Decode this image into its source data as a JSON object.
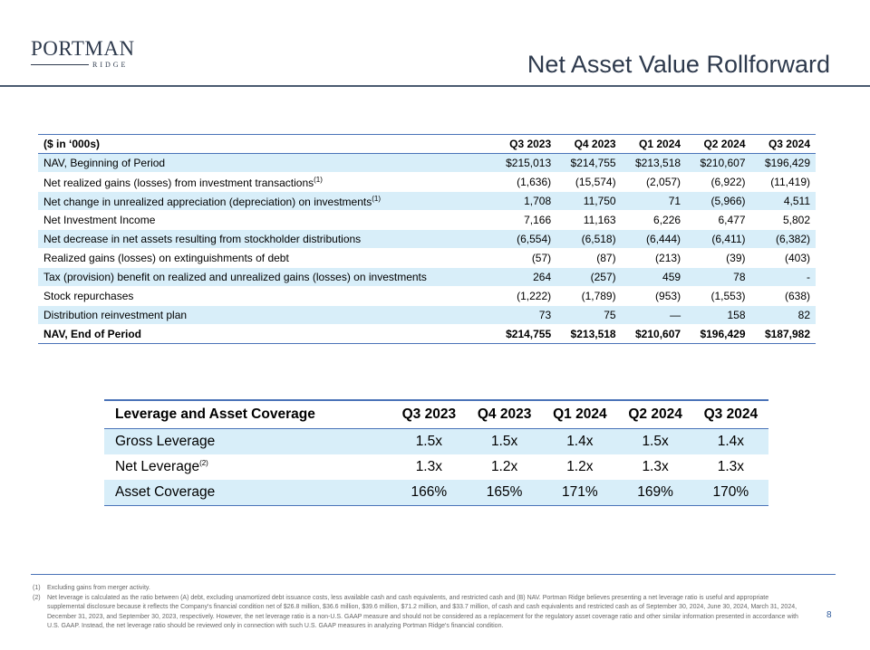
{
  "logo": {
    "main": "PORTMAN",
    "sub": "RIDGE"
  },
  "title": "Net Asset Value Rollforward",
  "nav_table": {
    "headers": [
      "($ in ‘000s)",
      "Q3 2023",
      "Q4 2023",
      "Q1 2024",
      "Q2 2024",
      "Q3 2024"
    ],
    "rows": [
      {
        "label": "NAV, Beginning of Period",
        "note": "",
        "values": [
          "$215,013",
          "$214,755",
          "$213,518",
          "$210,607",
          "$196,429"
        ]
      },
      {
        "label": "Net realized gains (losses) from investment transactions",
        "note": "(1)",
        "values": [
          "(1,636)",
          "(15,574)",
          "(2,057)",
          "(6,922)",
          "(11,419)"
        ]
      },
      {
        "label": "Net change in unrealized appreciation (depreciation) on investments",
        "note": "(1)",
        "values": [
          "1,708",
          "11,750",
          "71",
          "(5,966)",
          "4,511"
        ]
      },
      {
        "label": "Net Investment Income",
        "note": "",
        "values": [
          "7,166",
          "11,163",
          "6,226",
          "6,477",
          "5,802"
        ]
      },
      {
        "label": "Net decrease in net assets resulting from stockholder distributions",
        "note": "",
        "values": [
          "(6,554)",
          "(6,518)",
          "(6,444)",
          "(6,411)",
          "(6,382)"
        ]
      },
      {
        "label": "Realized gains (losses) on extinguishments of debt",
        "note": "",
        "values": [
          "(57)",
          "(87)",
          "(213)",
          "(39)",
          "(403)"
        ]
      },
      {
        "label": "Tax (provision) benefit on realized and unrealized gains (losses) on investments",
        "note": "",
        "values": [
          "264",
          "(257)",
          "459",
          "78",
          "-"
        ]
      },
      {
        "label": "Stock repurchases",
        "note": "",
        "values": [
          "(1,222)",
          "(1,789)",
          "(953)",
          "(1,553)",
          "(638)"
        ]
      },
      {
        "label": "Distribution reinvestment plan",
        "note": "",
        "values": [
          "73",
          "75",
          "—",
          "158",
          "82"
        ]
      },
      {
        "label": "NAV, End of Period",
        "note": "",
        "values": [
          "$214,755",
          "$213,518",
          "$210,607",
          "$196,429",
          "$187,982"
        ]
      }
    ]
  },
  "leverage_table": {
    "headers": [
      "Leverage and Asset Coverage",
      "Q3 2023",
      "Q4 2023",
      "Q1 2024",
      "Q2 2024",
      "Q3 2024"
    ],
    "rows": [
      {
        "label": "Gross Leverage",
        "note": "",
        "values": [
          "1.5x",
          "1.5x",
          "1.4x",
          "1.5x",
          "1.4x"
        ]
      },
      {
        "label": "Net Leverage",
        "note": "(2)",
        "values": [
          "1.3x",
          "1.2x",
          "1.2x",
          "1.3x",
          "1.3x"
        ]
      },
      {
        "label": "Asset Coverage",
        "note": "",
        "values": [
          "166%",
          "165%",
          "171%",
          "169%",
          "170%"
        ]
      }
    ]
  },
  "footnotes": [
    {
      "num": "(1)",
      "text": "Excluding gains from merger activity."
    },
    {
      "num": "(2)",
      "text": "Net leverage is calculated as the ratio between (A) debt, excluding unamortized debt issuance costs, less available cash and cash equivalents, and restricted cash and (B) NAV. Portman Ridge believes presenting a net leverage ratio is useful and appropriate supplemental disclosure because it reflects the Company's financial condition net of $26.8 million, $36.6 million, $39.6 million, $71.2 million, and $33.7 million, of cash and cash equivalents and restricted cash as of September 30, 2024, June 30, 2024, March 31, 2024, December 31, 2023, and September 30, 2023, respectively. However, the net leverage ratio is a non-U.S. GAAP measure and should not be considered as a replacement for the regulatory asset coverage ratio and other similar information presented in accordance with U.S. GAAP. Instead, the net leverage ratio should be reviewed only in connection with such U.S. GAAP measures in analyzing Portman Ridge's financial condition."
    }
  ],
  "page_number": "8"
}
